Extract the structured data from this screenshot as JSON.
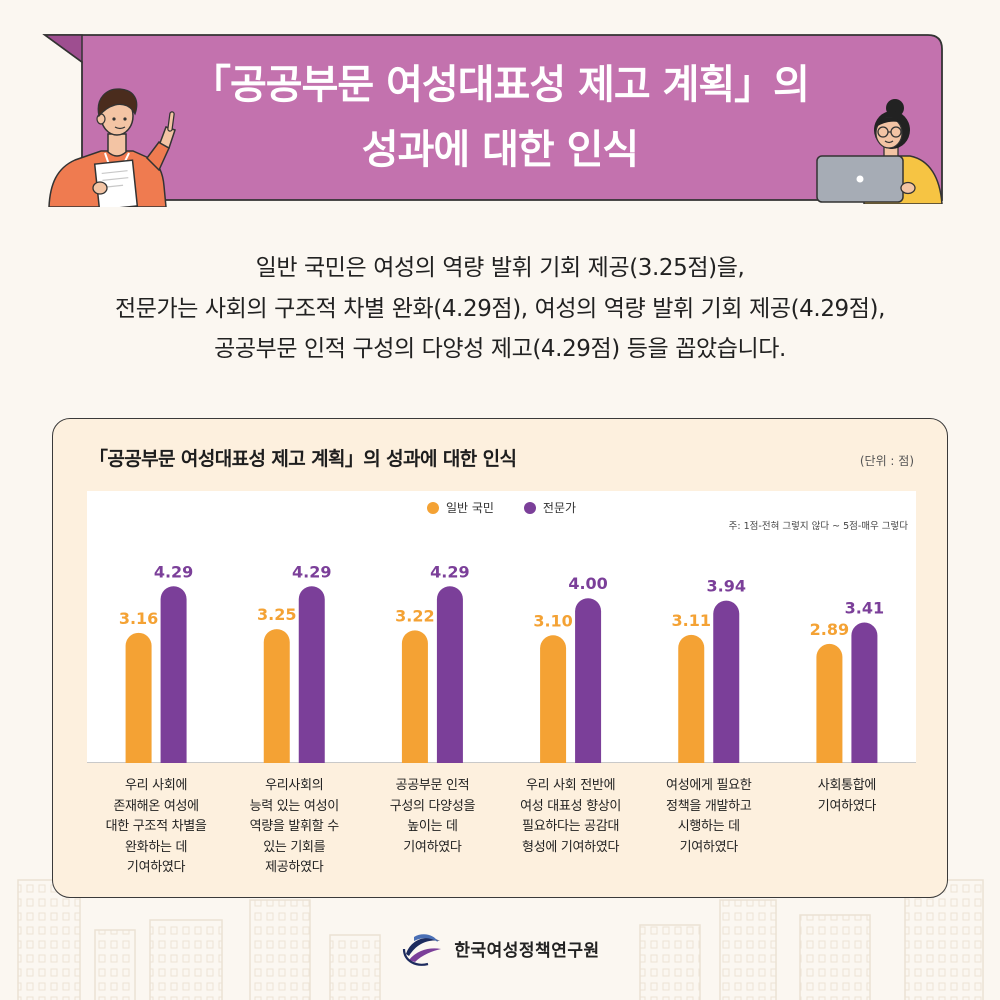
{
  "banner": {
    "title_line1": "「공공부문 여성대표성 제고 계획」의",
    "title_line2": "성과에 대한 인식"
  },
  "summary": {
    "line1": "일반 국민은 여성의 역량 발휘 기회 제공(3.25점)을,",
    "line2": "전문가는 사회의 구조적 차별 완화(4.29점), 여성의 역량 발휘 기회 제공(4.29점),",
    "line3": "공공부문 인적 구성의 다양성 제고(4.29점) 등을 꼽았습니다."
  },
  "chart_data": {
    "type": "bar",
    "title": "「공공부문 여성대표성 제고 계획」의 성과에 대한 인식",
    "unit": "(단위 : 점)",
    "note": "주: 1점-전혀 그렇지 않다 ~ 5점-매우 그렇다",
    "categories": [
      "우리 사회에\n존재해온 여성에\n대한 구조적 차별을\n완화하는 데\n기여하였다",
      "우리사회의\n능력 있는 여성이\n역량을 발휘할 수\n있는 기회를\n제공하였다",
      "공공부문 인적\n구성의 다양성을\n높이는 데\n기여하였다",
      "우리 사회 전반에\n여성 대표성 향상이\n필요하다는 공감대\n형성에 기여하였다",
      "여성에게 필요한\n정책을 개발하고\n시행하는 데\n기여하였다",
      "사회통합에\n기여하였다"
    ],
    "series": [
      {
        "name": "일반 국민",
        "color": "#f4a234",
        "values": [
          3.16,
          3.25,
          3.22,
          3.1,
          3.11,
          2.89
        ],
        "labels": [
          "3.16",
          "3.25",
          "3.22",
          "3.10",
          "3.11",
          "2.89"
        ]
      },
      {
        "name": "전문가",
        "color": "#7b3f99",
        "values": [
          4.29,
          4.29,
          4.29,
          4.0,
          3.94,
          3.41
        ],
        "labels": [
          "4.29",
          "4.29",
          "4.29",
          "4.00",
          "3.94",
          "3.41"
        ]
      }
    ],
    "ylim": [
      0,
      5
    ],
    "grid": false,
    "legend": "top-center"
  },
  "footer": {
    "org_name": "한국여성정책연구원"
  }
}
